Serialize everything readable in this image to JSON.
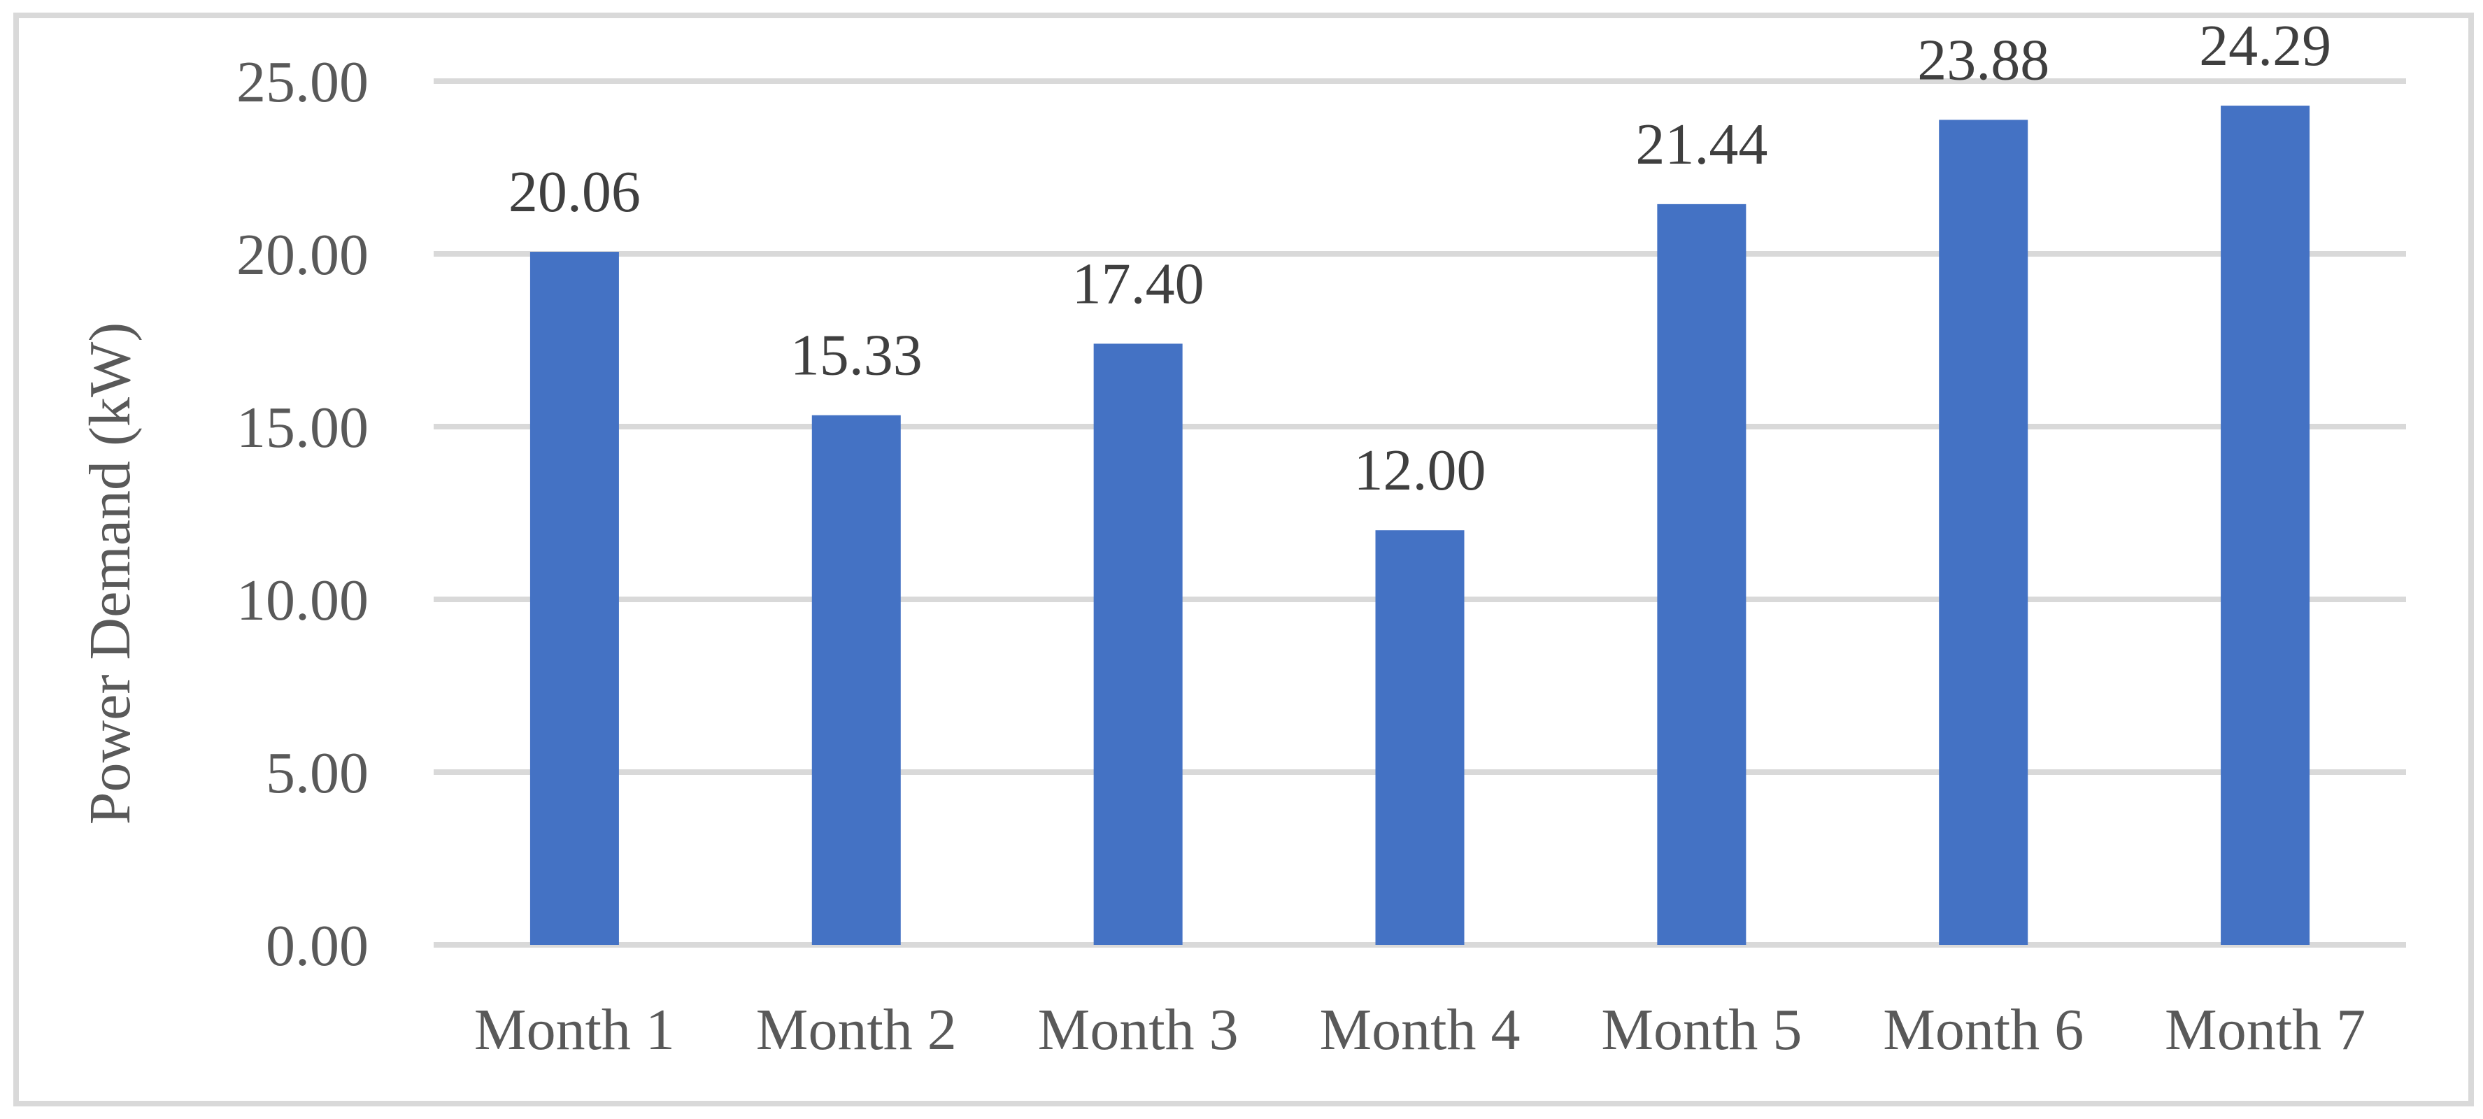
{
  "figure": {
    "background_color": "#FFFFFF",
    "border_color": "#D9D9D9"
  },
  "chart_data": {
    "type": "bar",
    "categories": [
      "Month 1",
      "Month 2",
      "Month 3",
      "Month 4",
      "Month 5",
      "Month 6",
      "Month 7"
    ],
    "values": [
      20.06,
      15.33,
      17.4,
      12.0,
      21.44,
      23.88,
      24.29
    ],
    "data_labels": [
      "20.06",
      "15.33",
      "17.40",
      "12.00",
      "21.44",
      "23.88",
      "24.29"
    ],
    "title": "",
    "xlabel": "",
    "ylabel": "Power Demand (kW)",
    "ylim": [
      0,
      25
    ],
    "yticks": [
      0,
      5,
      10,
      15,
      20,
      25
    ],
    "ytick_labels": [
      "0.00",
      "5.00",
      "10.00",
      "15.00",
      "20.00",
      "25.00"
    ],
    "grid": true,
    "legend": "none",
    "bar_color": "#4472C4",
    "gridline_color": "#D9D9D9",
    "axis_text_color": "#595959",
    "data_label_color": "#3F3F3F"
  }
}
